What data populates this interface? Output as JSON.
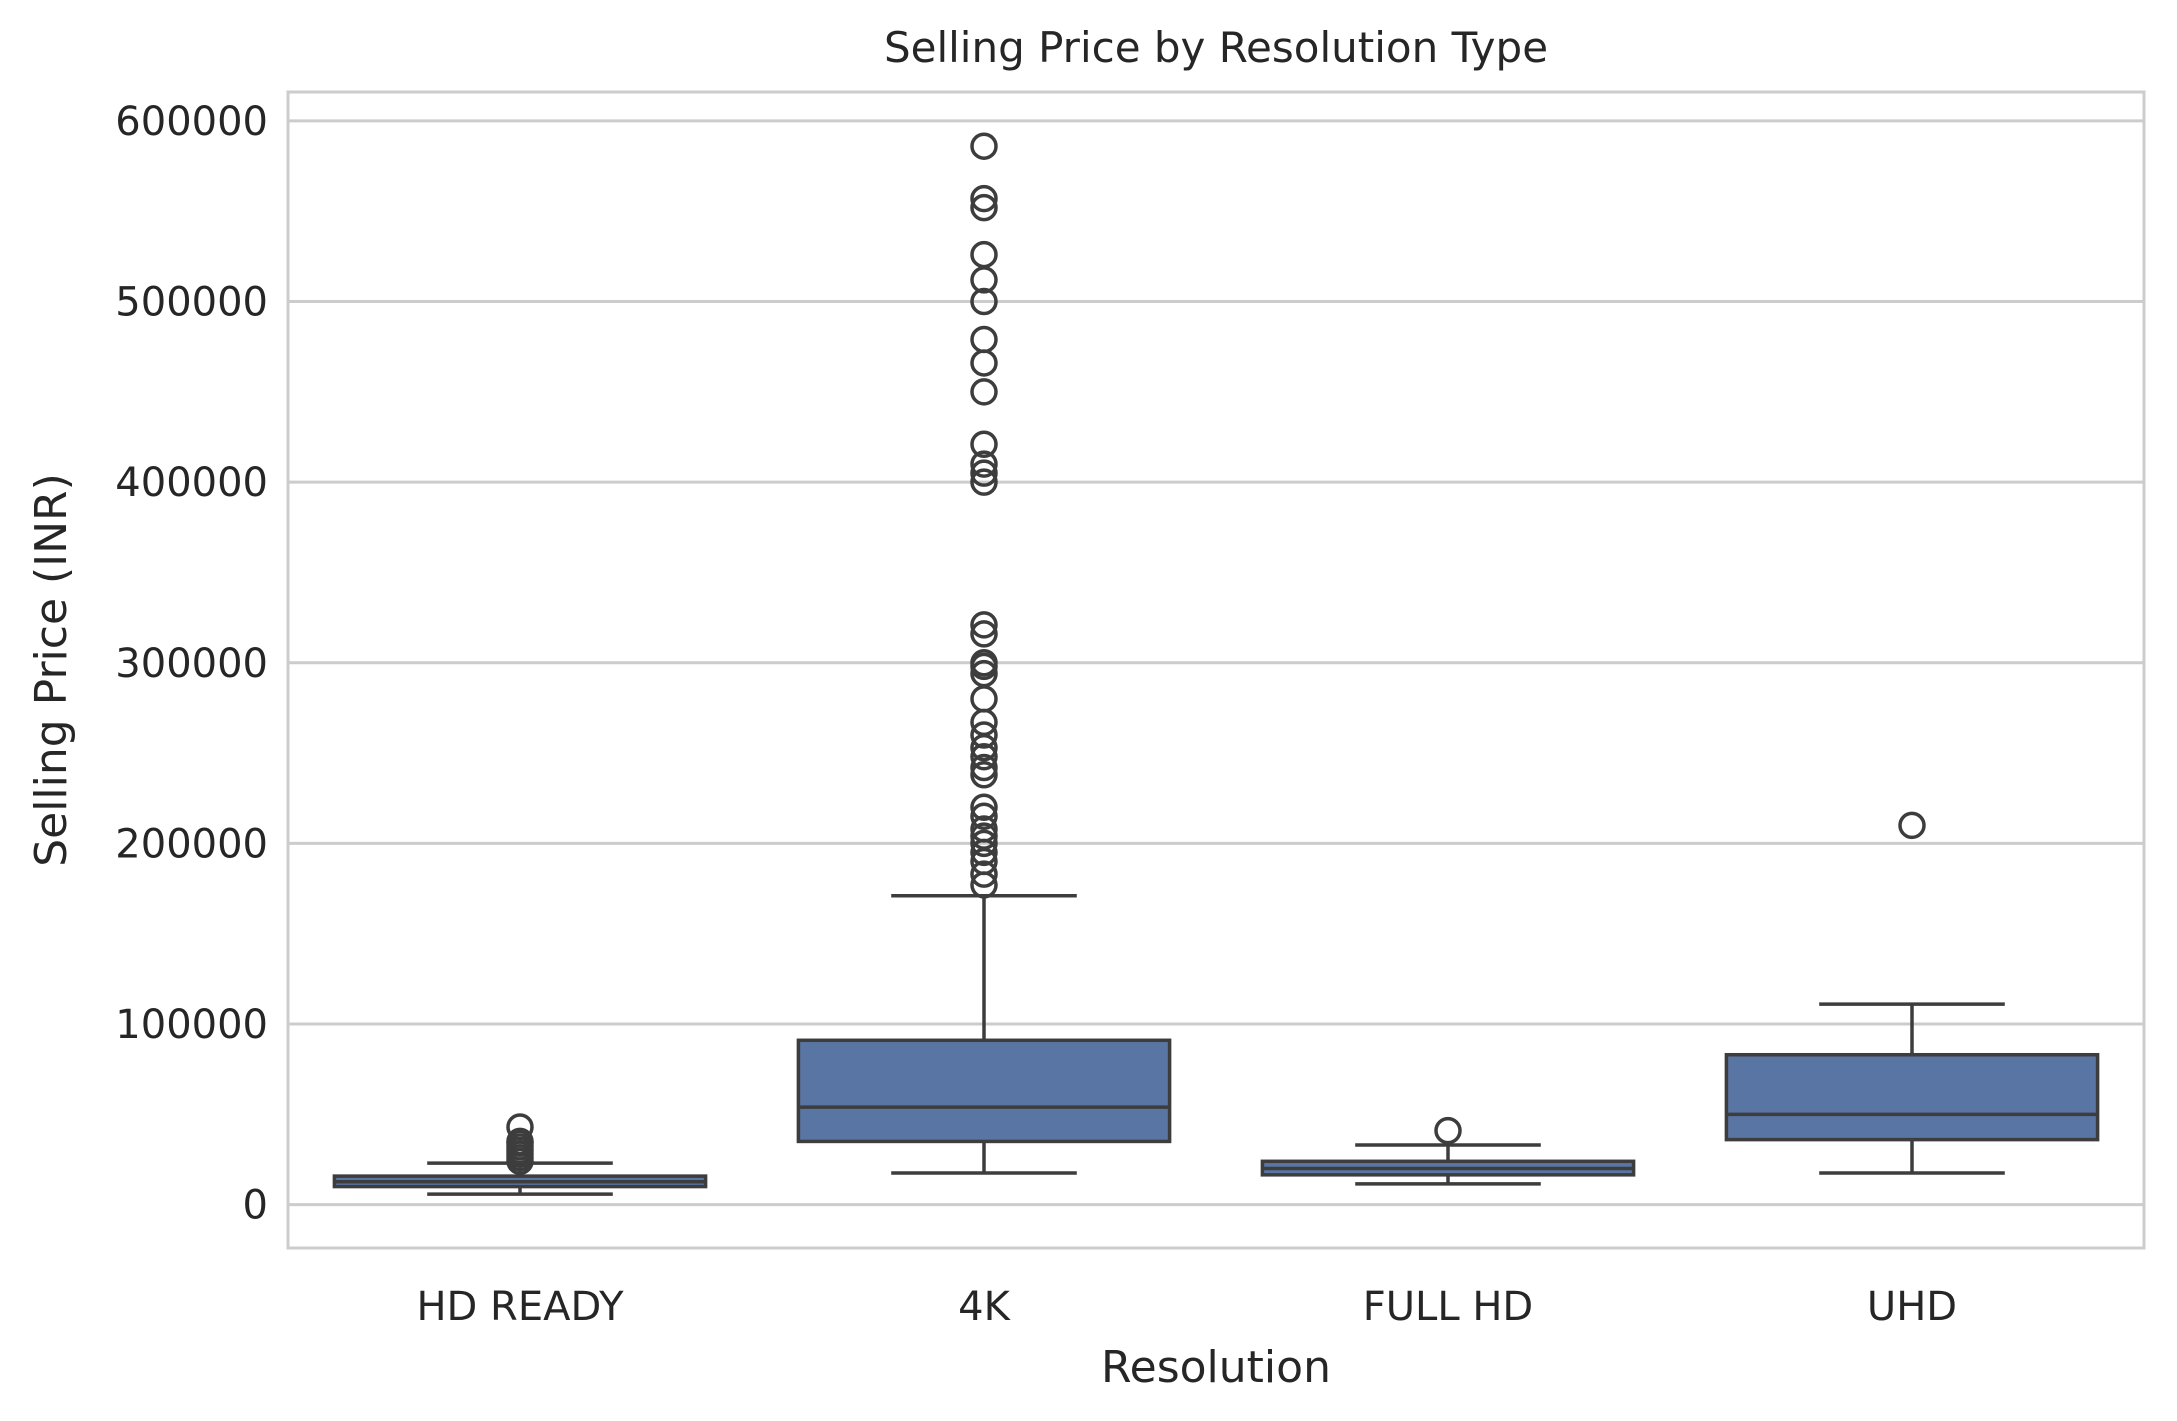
{
  "chart_data": {
    "type": "box",
    "title": "Selling Price by Resolution Type",
    "xlabel": "Resolution",
    "ylabel": "Selling Price (INR)",
    "ylim": [
      -24000,
      616000
    ],
    "yticks": [
      0,
      100000,
      200000,
      300000,
      400000,
      500000,
      600000
    ],
    "yticklabels": [
      "0",
      "100000",
      "200000",
      "300000",
      "400000",
      "500000",
      "600000"
    ],
    "grid": "horizontal",
    "categories": [
      "HD READY",
      "4K",
      "FULL HD",
      "UHD"
    ],
    "colors": {
      "box": "#5975a4",
      "line": "#3d3d3d",
      "grid": "#cccccc",
      "frame": "#cccccc"
    },
    "boxes": [
      {
        "category": "HD READY",
        "whisker_low": 5800,
        "q1": 10000,
        "median": 12700,
        "q3": 15800,
        "whisker_high": 23000,
        "outliers": [
          24000,
          26000,
          28000,
          30000,
          32000,
          34000,
          35000,
          43000
        ]
      },
      {
        "category": "4K",
        "whisker_low": 17500,
        "q1": 35000,
        "median": 54000,
        "q3": 91000,
        "whisker_high": 171000,
        "outliers": [
          177000,
          183000,
          190000,
          195000,
          200000,
          204000,
          208000,
          215000,
          220000,
          238000,
          242000,
          248000,
          253000,
          260000,
          267000,
          280000,
          294000,
          298000,
          300000,
          316000,
          321000,
          400000,
          405000,
          410000,
          421000,
          450000,
          466000,
          479000,
          500000,
          512000,
          526000,
          552000,
          557000,
          586000
        ]
      },
      {
        "category": "FULL HD",
        "whisker_low": 11500,
        "q1": 16500,
        "median": 20000,
        "q3": 24000,
        "whisker_high": 33000,
        "outliers": [
          41000
        ]
      },
      {
        "category": "UHD",
        "whisker_low": 17500,
        "q1": 36000,
        "median": 50000,
        "q3": 83000,
        "whisker_high": 111000,
        "outliers": [
          210000
        ]
      }
    ]
  }
}
